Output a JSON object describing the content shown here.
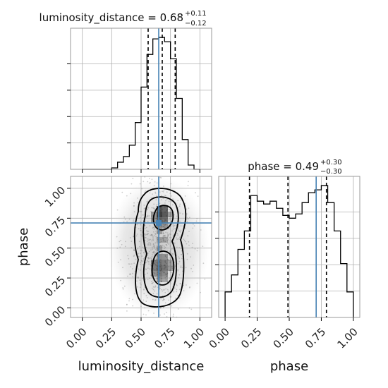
{
  "chart_data": {
    "type": "corner",
    "parameters": [
      "luminosity_distance",
      "phase"
    ],
    "truth_color": "#4682b4",
    "panels": {
      "luminosity_distance_hist": {
        "type": "histogram",
        "title": {
          "prefix": "luminosity_distance = ",
          "value": "0.68",
          "upper": "+0.11",
          "lower": "−0.12"
        },
        "xlim": [
          -0.1,
          1.1
        ],
        "bin_edges": [
          0.0,
          0.05,
          0.1,
          0.15,
          0.2,
          0.25,
          0.3,
          0.35,
          0.4,
          0.45,
          0.5,
          0.55,
          0.6,
          0.65,
          0.7,
          0.75,
          0.8,
          0.85,
          0.9,
          0.95,
          1.0
        ],
        "counts": [
          0,
          0,
          0,
          0,
          0,
          1,
          5,
          9,
          17,
          33,
          58,
          81,
          92,
          93,
          90,
          78,
          50,
          21,
          3,
          0
        ],
        "quantiles": [
          0.56,
          0.68,
          0.79
        ],
        "truth": 0.65
      },
      "phase_hist": {
        "type": "histogram",
        "title": {
          "prefix": "phase = ",
          "value": "0.49",
          "upper": "+0.30",
          "lower": "−0.30"
        },
        "xlim": [
          -0.05,
          1.05
        ],
        "bin_edges": [
          0.0,
          0.05,
          0.1,
          0.15,
          0.2,
          0.25,
          0.3,
          0.35,
          0.4,
          0.45,
          0.5,
          0.55,
          0.6,
          0.65,
          0.7,
          0.75,
          0.8,
          0.85,
          0.9,
          0.95,
          1.0
        ],
        "counts": [
          18,
          30,
          48,
          61,
          86,
          82,
          80,
          82,
          77,
          72,
          70,
          73,
          81,
          88,
          90,
          93,
          81,
          61,
          38,
          18
        ],
        "quantiles": [
          0.19,
          0.49,
          0.79
        ],
        "truth": 0.71,
        "xticks": [
          "0.00",
          "0.25",
          "0.50",
          "0.75",
          "1.00"
        ],
        "xlabel": "phase"
      },
      "joint": {
        "type": "contour-2d",
        "xlim": [
          -0.1,
          1.1
        ],
        "ylim": [
          -0.08,
          1.1
        ],
        "truth": {
          "x": 0.65,
          "y": 0.71
        },
        "xticks": [
          "0.00",
          "0.25",
          "0.50",
          "0.75",
          "1.00"
        ],
        "yticks": [
          "0.00",
          "0.25",
          "0.50",
          "0.75",
          "1.00"
        ],
        "xlabel": "luminosity_distance",
        "ylabel": "phase"
      }
    }
  }
}
